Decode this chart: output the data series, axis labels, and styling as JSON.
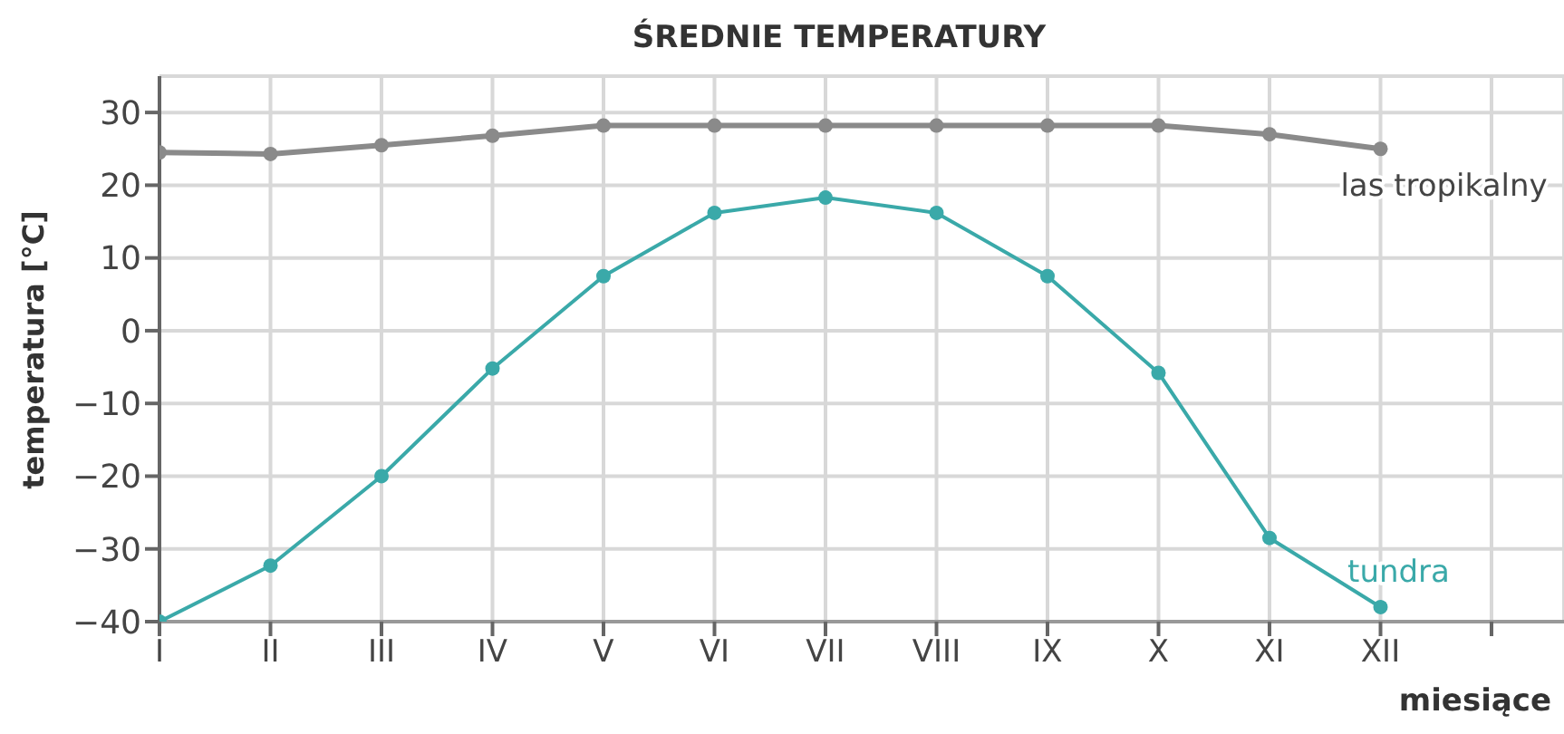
{
  "chart_data": {
    "type": "line",
    "title": "ŚREDNIE  TEMPERATURY",
    "xlabel": "miesiące",
    "ylabel": "temperatura [°C]",
    "categories": [
      "I",
      "II",
      "III",
      "IV",
      "V",
      "VI",
      "VII",
      "VIII",
      "IX",
      "X",
      "XI",
      "XII",
      null
    ],
    "series": [
      {
        "name": "las tropikalny",
        "color": "#8a8a8a",
        "values": [
          24.5,
          24.3,
          25.5,
          26.8,
          28.2,
          28.2,
          28.2,
          28.2,
          28.2,
          28.2,
          27,
          25,
          null
        ]
      },
      {
        "name": "tundra",
        "color": "#3aa9a9",
        "values": [
          -40,
          -32.3,
          -20,
          -5.2,
          7.5,
          16.2,
          18.3,
          16.2,
          7.5,
          -5.8,
          -28.5,
          -38,
          null
        ]
      }
    ],
    "ylim": [
      -40,
      35
    ],
    "yticks": [
      -40,
      -30,
      -20,
      -10,
      0,
      10,
      20,
      30
    ],
    "grid": true,
    "marker": "circle",
    "line_style": "solid"
  }
}
